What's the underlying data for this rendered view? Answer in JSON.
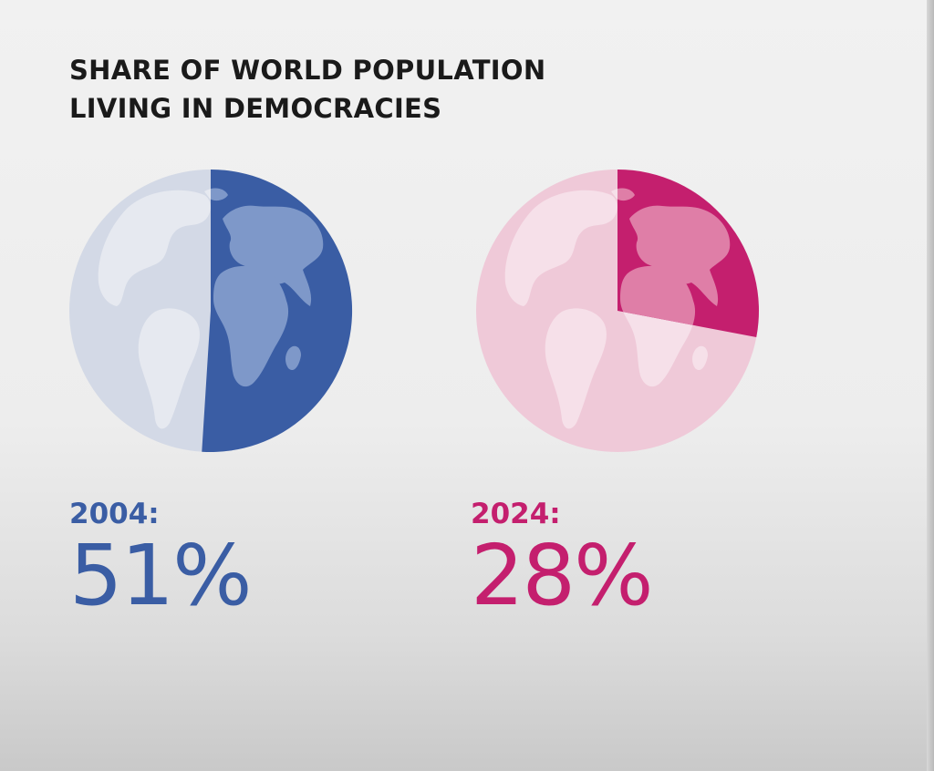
{
  "chart_data": {
    "type": "pie",
    "title": "SHARE OF WORLD POPULATION LIVING IN DEMOCRACIES",
    "title_lines": [
      "SHARE OF WORLD POPULATION",
      "LIVING IN DEMOCRACIES"
    ],
    "panels": [
      {
        "year_label": "2004:",
        "value_label": "51%",
        "value": 51,
        "colors": {
          "highlight": "#3a5da4",
          "base": "#d3d9e6",
          "land_light": "#e6e9f0",
          "land_dark": "#7e98c9"
        }
      },
      {
        "year_label": "2024:",
        "value_label": "28%",
        "value": 28,
        "colors": {
          "highlight": "#c41f6e",
          "base": "#efc9d8",
          "land_light": "#f6e0e9",
          "land_dark": "#df7ea7"
        }
      }
    ]
  }
}
